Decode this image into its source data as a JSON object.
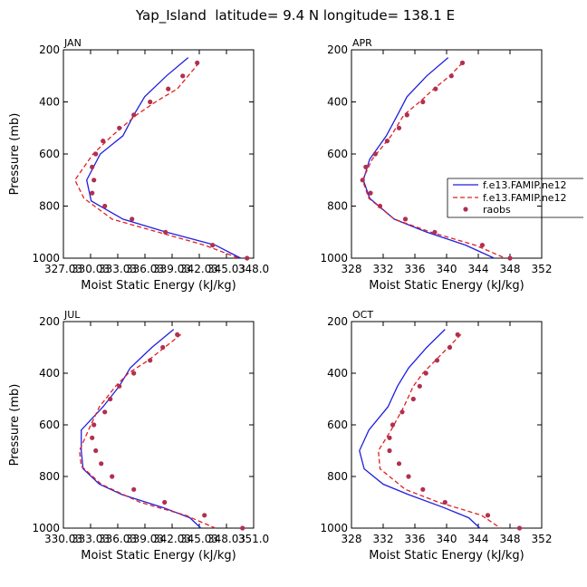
{
  "title": "Yap_Island  latitude= 9.4 N longitude= 138.1 E",
  "legend": {
    "entries": [
      {
        "label": "f.e13.FAMIP.ne12",
        "style": "solid",
        "color": "#1f1fe0"
      },
      {
        "label": "f.e13.FAMIP.ne12",
        "style": "dashed",
        "color": "#e02020"
      },
      {
        "label": "raobs",
        "style": "dots",
        "color": "#b03050"
      }
    ]
  },
  "chart_data": [
    {
      "type": "line",
      "title": "JAN",
      "xlabel": "Moist Static Energy (kJ/kg)",
      "ylabel": "Pressure (mb)",
      "xlim": [
        327.03,
        348.03
      ],
      "ylim": [
        1000,
        200
      ],
      "x_ticks": [
        327.03,
        330.03,
        333.03,
        336.03,
        339.03,
        342.03,
        345.03,
        348.03
      ],
      "x_tick_labels": [
        "327.03",
        "330.03",
        "333.03",
        "336.03",
        "339.03",
        "342.03",
        "345.03",
        "348.0"
      ],
      "y_ticks": [
        200,
        400,
        600,
        800,
        1000
      ],
      "series": [
        {
          "name": "f.e13.FAMIP.ne12",
          "pressure": [
            230,
            300,
            380,
            450,
            530,
            600,
            700,
            780,
            850,
            900,
            950,
            1000
          ],
          "values": [
            340.8,
            338.4,
            336.0,
            334.8,
            333.6,
            331.1,
            329.6,
            330.1,
            333.6,
            338.4,
            343.8,
            346.6
          ]
        },
        {
          "name": "f.e13.FAMIP.ne12",
          "pressure": [
            250,
            300,
            350,
            400,
            450,
            530,
            600,
            700,
            770,
            850,
            900,
            950,
            1000
          ],
          "values": [
            342.0,
            340.8,
            339.6,
            337.2,
            335.1,
            332.4,
            330.3,
            328.3,
            329.3,
            332.4,
            337.5,
            342.6,
            346.4
          ]
        },
        {
          "name": "raobs",
          "pressure": [
            250,
            300,
            350,
            400,
            450,
            500,
            550,
            600,
            650,
            700,
            750,
            800,
            850,
            900,
            950,
            1000
          ],
          "values": [
            341.8,
            340.2,
            338.6,
            336.6,
            334.8,
            333.2,
            331.4,
            330.6,
            330.2,
            330.4,
            330.2,
            331.6,
            334.6,
            338.3,
            343.5,
            347.3
          ]
        }
      ]
    },
    {
      "type": "line",
      "title": "APR",
      "xlabel": "Moist Static Energy (kJ/kg)",
      "ylabel": "",
      "xlim": [
        328,
        352
      ],
      "ylim": [
        1000,
        200
      ],
      "x_ticks": [
        328,
        332,
        336,
        340,
        344,
        348,
        352
      ],
      "x_tick_labels": [
        "328",
        "332",
        "336",
        "340",
        "344",
        "348",
        "352"
      ],
      "y_ticks": [
        200,
        400,
        600,
        800,
        1000
      ],
      "series": [
        {
          "name": "f.e13.FAMIP.ne12",
          "pressure": [
            230,
            300,
            380,
            450,
            530,
            620,
            700,
            770,
            850,
            900,
            950,
            1000
          ],
          "values": [
            340.2,
            337.5,
            335.0,
            333.8,
            332.4,
            330.3,
            329.5,
            330.3,
            333.4,
            337.5,
            342.4,
            346.0
          ]
        },
        {
          "name": "f.e13.FAMIP.ne12",
          "pressure": [
            250,
            300,
            350,
            400,
            450,
            530,
            620,
            700,
            770,
            850,
            900,
            950,
            1000
          ],
          "values": [
            342.0,
            340.4,
            338.4,
            336.6,
            334.6,
            333.0,
            330.6,
            329.4,
            330.2,
            333.4,
            338.0,
            343.6,
            347.4
          ]
        },
        {
          "name": "raobs",
          "pressure": [
            250,
            300,
            350,
            400,
            450,
            500,
            550,
            600,
            650,
            700,
            750,
            800,
            850,
            900,
            950,
            1000
          ],
          "values": [
            342.0,
            340.6,
            338.6,
            337.0,
            335.0,
            334.0,
            332.5,
            331.0,
            329.8,
            329.4,
            330.4,
            331.6,
            334.8,
            338.5,
            344.5,
            348.0
          ]
        }
      ]
    },
    {
      "type": "line",
      "title": "JUL",
      "xlabel": "Moist Static Energy (kJ/kg)",
      "ylabel": "Pressure (mb)",
      "xlim": [
        330.03,
        351.03
      ],
      "ylim": [
        1000,
        200
      ],
      "x_ticks": [
        330.03,
        333.03,
        336.03,
        339.03,
        342.03,
        345.03,
        348.03,
        351.03
      ],
      "x_tick_labels": [
        "330.03",
        "333.03",
        "336.03",
        "339.03",
        "342.03",
        "345.03",
        "348.03",
        "351.0"
      ],
      "y_ticks": [
        200,
        400,
        600,
        800,
        1000
      ],
      "series": [
        {
          "name": "f.e13.FAMIP.ne12",
          "pressure": [
            230,
            300,
            380,
            450,
            530,
            620,
            700,
            770,
            830,
            870,
            920,
            960,
            1000
          ],
          "values": [
            342.2,
            339.8,
            337.4,
            336.2,
            334.4,
            332.0,
            332.0,
            332.2,
            334.0,
            336.5,
            341.0,
            344.0,
            345.2
          ]
        },
        {
          "name": "f.e13.FAMIP.ne12",
          "pressure": [
            250,
            300,
            350,
            400,
            450,
            530,
            620,
            700,
            760,
            830,
            900,
            950,
            1000
          ],
          "values": [
            343.0,
            341.2,
            339.4,
            337.2,
            335.8,
            334.0,
            332.8,
            331.8,
            332.0,
            334.2,
            338.5,
            343.5,
            346.8
          ]
        },
        {
          "name": "raobs",
          "pressure": [
            250,
            300,
            350,
            400,
            450,
            500,
            550,
            600,
            650,
            700,
            750,
            800,
            850,
            900,
            950,
            1000
          ],
          "values": [
            342.6,
            341.0,
            339.6,
            337.8,
            336.2,
            335.2,
            334.6,
            333.4,
            333.2,
            333.6,
            334.2,
            335.4,
            337.8,
            341.2,
            345.6,
            349.8
          ]
        }
      ]
    },
    {
      "type": "line",
      "title": "OCT",
      "xlabel": "Moist Static Energy (kJ/kg)",
      "ylabel": "",
      "xlim": [
        328,
        352
      ],
      "ylim": [
        1000,
        200
      ],
      "x_ticks": [
        328,
        332,
        336,
        340,
        344,
        348,
        352
      ],
      "x_tick_labels": [
        "328",
        "332",
        "336",
        "340",
        "344",
        "348",
        "352"
      ],
      "y_ticks": [
        200,
        400,
        600,
        800,
        1000
      ],
      "series": [
        {
          "name": "f.e13.FAMIP.ne12",
          "pressure": [
            230,
            300,
            380,
            450,
            530,
            620,
            700,
            770,
            830,
            870,
            920,
            960,
            1000
          ],
          "values": [
            339.8,
            337.5,
            335.2,
            333.8,
            332.6,
            330.2,
            329.0,
            329.6,
            332.0,
            335.2,
            339.6,
            342.8,
            344.2
          ]
        },
        {
          "name": "f.e13.FAMIP.ne12",
          "pressure": [
            250,
            300,
            350,
            400,
            450,
            530,
            620,
            700,
            770,
            850,
            900,
            950,
            1000
          ],
          "values": [
            341.8,
            340.2,
            338.6,
            337.0,
            335.8,
            334.6,
            333.0,
            331.4,
            331.6,
            334.8,
            339.0,
            344.4,
            346.8
          ]
        },
        {
          "name": "raobs",
          "pressure": [
            250,
            300,
            350,
            400,
            450,
            500,
            550,
            600,
            650,
            700,
            750,
            800,
            850,
            900,
            950,
            1000
          ],
          "values": [
            341.4,
            340.4,
            338.8,
            337.4,
            336.6,
            335.8,
            334.4,
            333.2,
            332.8,
            332.8,
            334.0,
            335.2,
            337.0,
            339.8,
            345.2,
            349.2
          ]
        }
      ]
    }
  ]
}
